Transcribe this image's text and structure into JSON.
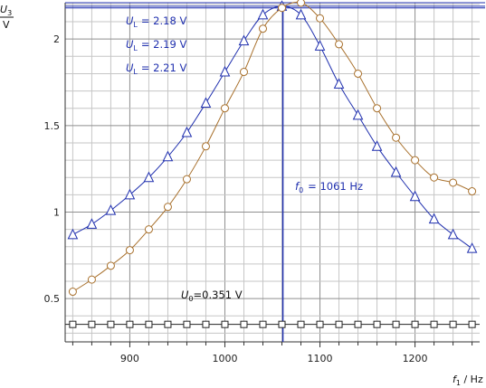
{
  "chart_data": {
    "type": "line",
    "xlabel": "f",
    "xlabel_sub": "1",
    "xunit": " / Hz",
    "ylabel": "U",
    "ylabel_sub": "3",
    "yunit": "V",
    "xlim": [
      832,
      1268
    ],
    "ylim": [
      0.25,
      2.21
    ],
    "x_ticks": [
      900,
      1000,
      1100,
      1200
    ],
    "y_ticks": [
      0.5,
      1,
      1.5,
      2
    ],
    "y_tick_labels": [
      "0.5",
      "1",
      "1.5",
      "2"
    ],
    "grid": true,
    "series": [
      {
        "marker": "triangle",
        "color": "#1f2fae",
        "x": [
          840,
          860,
          880,
          900,
          920,
          940,
          960,
          980,
          1000,
          1020,
          1040,
          1060,
          1080,
          1100,
          1120,
          1140,
          1160,
          1180,
          1200,
          1220,
          1240,
          1260
        ],
        "y": [
          0.87,
          0.93,
          1.01,
          1.1,
          1.2,
          1.32,
          1.46,
          1.63,
          1.81,
          1.99,
          2.14,
          2.19,
          2.14,
          1.96,
          1.74,
          1.56,
          1.38,
          1.23,
          1.09,
          0.96,
          0.87,
          0.79
        ]
      },
      {
        "marker": "circle",
        "color": "#a8702c",
        "x": [
          840,
          860,
          880,
          900,
          920,
          940,
          960,
          980,
          1000,
          1020,
          1040,
          1060,
          1080,
          1100,
          1120,
          1140,
          1160,
          1180,
          1200,
          1220,
          1240,
          1260
        ],
        "y": [
          0.54,
          0.61,
          0.69,
          0.78,
          0.9,
          1.03,
          1.19,
          1.38,
          1.6,
          1.81,
          2.06,
          2.18,
          2.21,
          2.12,
          1.97,
          1.8,
          1.6,
          1.43,
          1.3,
          1.2,
          1.17,
          1.12
        ]
      },
      {
        "marker": "square",
        "color": "#222222",
        "x": [
          840,
          860,
          880,
          900,
          920,
          940,
          960,
          980,
          1000,
          1020,
          1040,
          1060,
          1080,
          1100,
          1120,
          1140,
          1160,
          1180,
          1200,
          1220,
          1240,
          1260
        ],
        "y": [
          0.351,
          0.351,
          0.351,
          0.351,
          0.351,
          0.351,
          0.351,
          0.351,
          0.351,
          0.351,
          0.351,
          0.351,
          0.351,
          0.351,
          0.351,
          0.351,
          0.351,
          0.351,
          0.351,
          0.351,
          0.351,
          0.351
        ]
      }
    ],
    "reference_lines": {
      "f0": 1061,
      "uL": [
        2.18,
        2.19,
        2.21
      ],
      "u0": 0.351
    },
    "annotations": {
      "uL_symbol": "U",
      "uL_sub": "L",
      "uL_texts": [
        "=  2.18 V",
        "=  2.19 V",
        "=  2.21 V"
      ],
      "f0_symbol": "f",
      "f0_sub": "0",
      "f0_text": "=  1061 Hz",
      "u0_symbol": "U",
      "u0_sub": "0",
      "u0_text": "=0.351 V"
    }
  }
}
